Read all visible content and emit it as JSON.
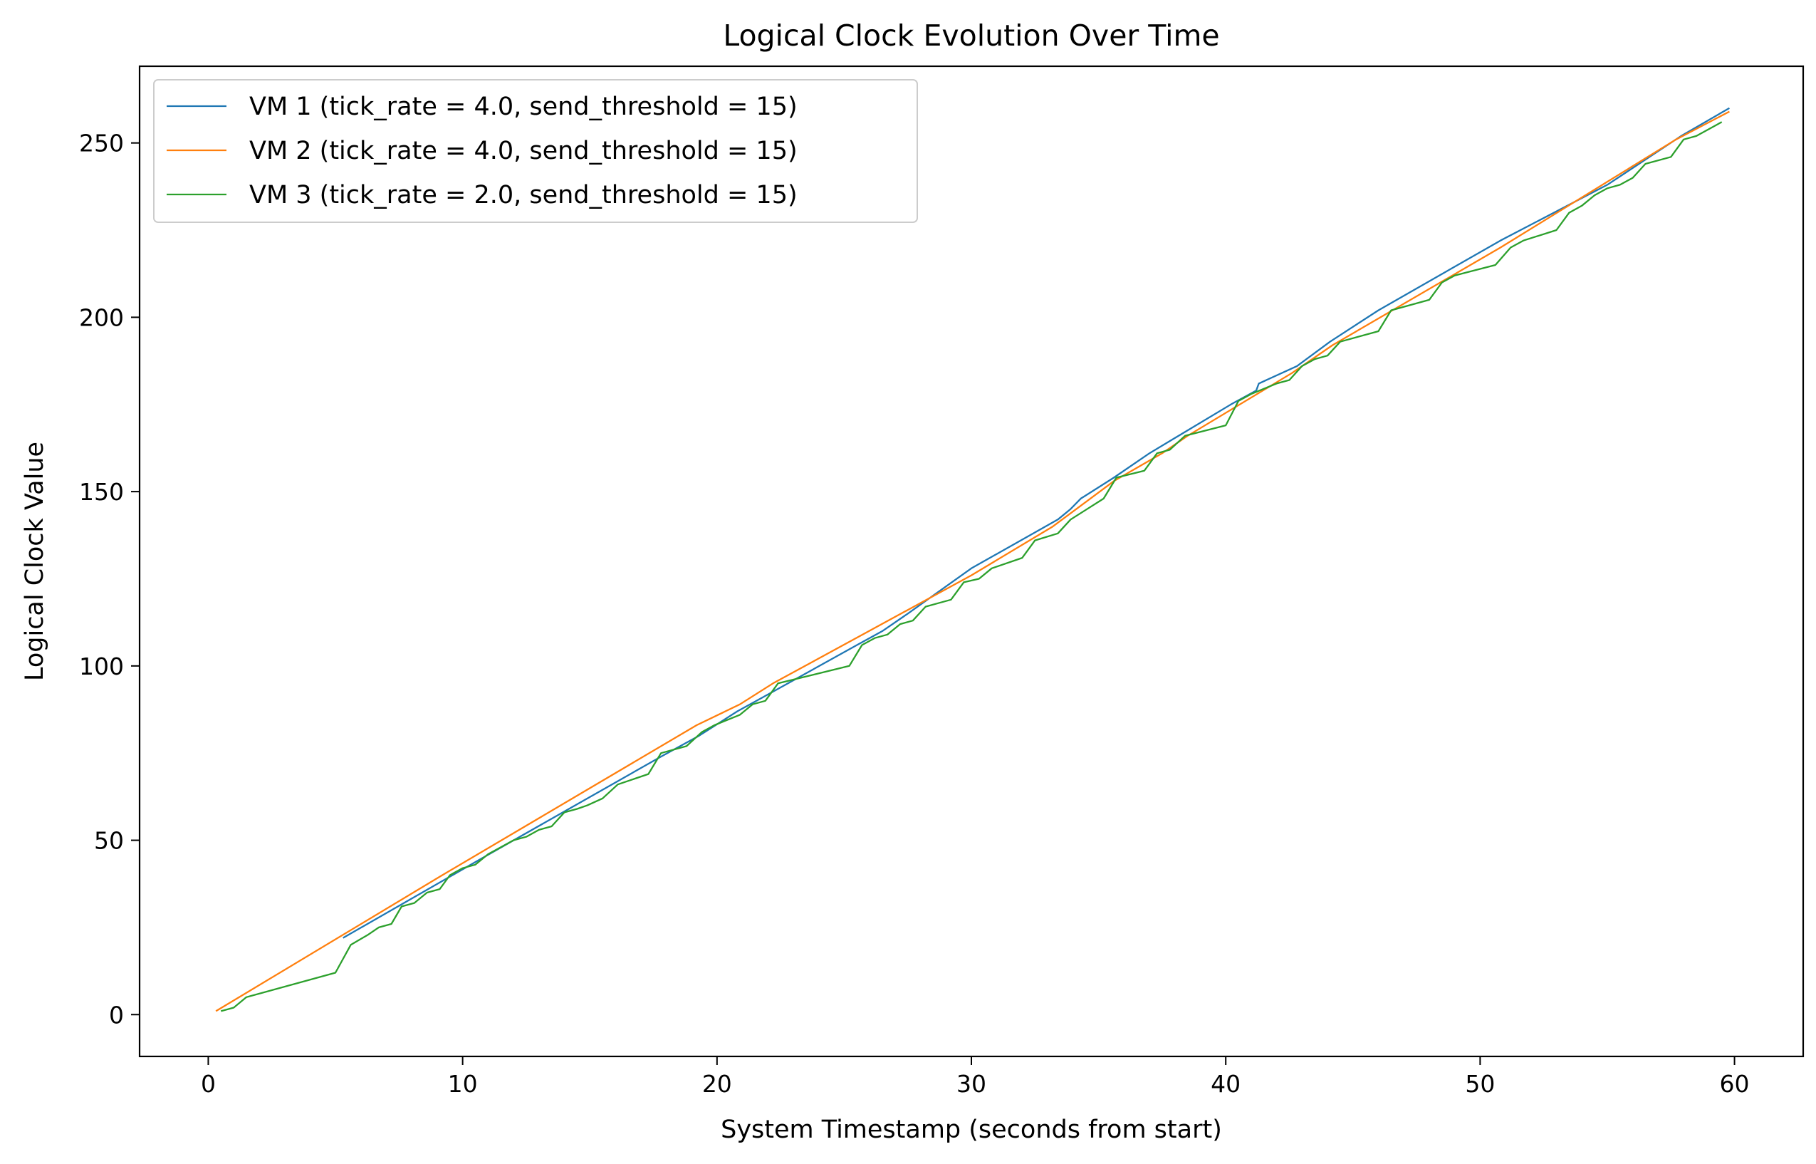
{
  "chart_data": {
    "type": "line",
    "title": "Logical Clock Evolution Over Time",
    "xlabel": "System Timestamp (seconds from start)",
    "ylabel": "Logical Clock Value",
    "xlim": [
      -2.7,
      62.7
    ],
    "ylim": [
      -12,
      272
    ],
    "xticks": [
      0,
      10,
      20,
      30,
      40,
      50,
      60
    ],
    "yticks": [
      0,
      50,
      100,
      150,
      200,
      250
    ],
    "grid": false,
    "legend_position": "top-left",
    "series": [
      {
        "name": "VM 1 (tick_rate = 4.0, send_threshold = 15)",
        "color": "#1f77b4",
        "points": [
          [
            5.3,
            22
          ],
          [
            10.8,
            45
          ],
          [
            17.8,
            74
          ],
          [
            19.3,
            80
          ],
          [
            20.8,
            87
          ],
          [
            21.8,
            91
          ],
          [
            25.5,
            106
          ],
          [
            26.5,
            110
          ],
          [
            27.5,
            115
          ],
          [
            30.0,
            128
          ],
          [
            33.4,
            142
          ],
          [
            33.9,
            145
          ],
          [
            34.3,
            148
          ],
          [
            35.6,
            154
          ],
          [
            37.0,
            161
          ],
          [
            40.2,
            175
          ],
          [
            41.2,
            179
          ],
          [
            41.3,
            181
          ],
          [
            42.8,
            186
          ],
          [
            44.1,
            193
          ],
          [
            46.0,
            202
          ],
          [
            50.8,
            222
          ],
          [
            55.0,
            238
          ],
          [
            57.9,
            252
          ],
          [
            59.8,
            260
          ]
        ]
      },
      {
        "name": "VM 2 (tick_rate = 4.0, send_threshold = 15)",
        "color": "#ff7f0e",
        "points": [
          [
            0.3,
            1
          ],
          [
            9.2,
            40
          ],
          [
            19.2,
            83
          ],
          [
            20.9,
            89
          ],
          [
            22.2,
            95
          ],
          [
            30.0,
            126
          ],
          [
            33.2,
            140
          ],
          [
            35.6,
            153
          ],
          [
            37.5,
            161
          ],
          [
            38.5,
            166
          ],
          [
            42.6,
            184
          ],
          [
            44.2,
            192
          ],
          [
            50.8,
            220
          ],
          [
            57.7,
            251
          ],
          [
            59.8,
            259
          ]
        ]
      },
      {
        "name": "VM 3 (tick_rate = 2.0, send_threshold = 15)",
        "color": "#2ca02c",
        "points": [
          [
            0.5,
            1
          ],
          [
            1.0,
            2
          ],
          [
            1.5,
            5
          ],
          [
            5.0,
            12
          ],
          [
            5.6,
            20
          ],
          [
            6.3,
            23
          ],
          [
            6.7,
            25
          ],
          [
            7.2,
            26
          ],
          [
            7.6,
            31
          ],
          [
            8.1,
            32
          ],
          [
            8.6,
            35
          ],
          [
            9.1,
            36
          ],
          [
            9.5,
            40
          ],
          [
            10.0,
            42
          ],
          [
            10.5,
            43
          ],
          [
            11.0,
            46
          ],
          [
            12.0,
            50
          ],
          [
            12.5,
            51
          ],
          [
            13.0,
            53
          ],
          [
            13.5,
            54
          ],
          [
            14.0,
            58
          ],
          [
            14.5,
            59
          ],
          [
            14.9,
            60
          ],
          [
            15.5,
            62
          ],
          [
            16.1,
            66
          ],
          [
            17.3,
            69
          ],
          [
            17.8,
            75
          ],
          [
            18.8,
            77
          ],
          [
            19.4,
            81
          ],
          [
            19.9,
            83
          ],
          [
            20.9,
            86
          ],
          [
            21.4,
            89
          ],
          [
            21.9,
            90
          ],
          [
            22.4,
            95
          ],
          [
            25.2,
            100
          ],
          [
            25.7,
            106
          ],
          [
            26.2,
            108
          ],
          [
            26.7,
            109
          ],
          [
            27.2,
            112
          ],
          [
            27.7,
            113
          ],
          [
            28.2,
            117
          ],
          [
            28.7,
            118
          ],
          [
            29.2,
            119
          ],
          [
            29.7,
            124
          ],
          [
            30.3,
            125
          ],
          [
            30.8,
            128
          ],
          [
            32.0,
            131
          ],
          [
            32.5,
            136
          ],
          [
            33.4,
            138
          ],
          [
            33.9,
            142
          ],
          [
            35.2,
            148
          ],
          [
            35.7,
            154
          ],
          [
            36.8,
            156
          ],
          [
            37.3,
            161
          ],
          [
            37.8,
            162
          ],
          [
            38.4,
            166
          ],
          [
            40.0,
            169
          ],
          [
            40.5,
            176
          ],
          [
            41.0,
            178
          ],
          [
            42.0,
            181
          ],
          [
            42.5,
            182
          ],
          [
            43.0,
            186
          ],
          [
            43.5,
            188
          ],
          [
            44.0,
            189
          ],
          [
            44.5,
            193
          ],
          [
            46.0,
            196
          ],
          [
            46.5,
            202
          ],
          [
            48.0,
            205
          ],
          [
            48.5,
            210
          ],
          [
            49.0,
            212
          ],
          [
            50.6,
            215
          ],
          [
            51.2,
            220
          ],
          [
            51.7,
            222
          ],
          [
            53.0,
            225
          ],
          [
            53.5,
            230
          ],
          [
            54.0,
            232
          ],
          [
            54.5,
            235
          ],
          [
            55.0,
            237
          ],
          [
            55.5,
            238
          ],
          [
            56.0,
            240
          ],
          [
            56.5,
            244
          ],
          [
            57.5,
            246
          ],
          [
            58.0,
            251
          ],
          [
            58.5,
            252
          ],
          [
            59.0,
            254
          ],
          [
            59.5,
            256
          ]
        ]
      }
    ]
  }
}
